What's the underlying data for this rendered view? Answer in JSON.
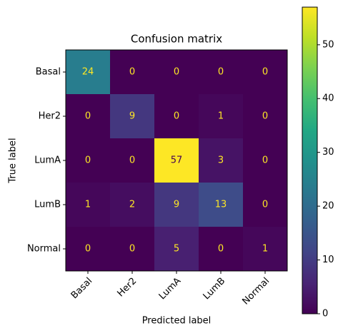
{
  "chart_data": {
    "type": "heatmap",
    "title": "Confusion matrix",
    "x_label": "Predicted label",
    "y_label": "True label",
    "x_categories": [
      "Basal",
      "Her2",
      "LumA",
      "LumB",
      "Normal"
    ],
    "y_categories": [
      "Basal",
      "Her2",
      "LumA",
      "LumB",
      "Normal"
    ],
    "z": [
      [
        24,
        0,
        0,
        0,
        0
      ],
      [
        0,
        9,
        0,
        1,
        0
      ],
      [
        0,
        0,
        57,
        3,
        0
      ],
      [
        1,
        2,
        9,
        13,
        0
      ],
      [
        0,
        0,
        5,
        0,
        1
      ]
    ],
    "zlim": [
      0,
      57
    ],
    "zticks": [
      0,
      10,
      20,
      30,
      40,
      50
    ],
    "colormap": "viridis"
  }
}
